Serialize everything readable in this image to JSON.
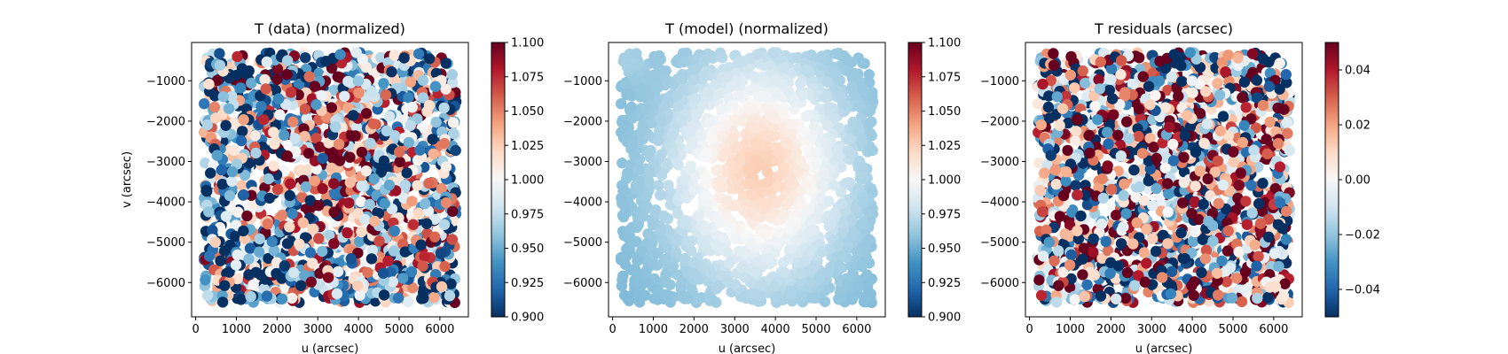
{
  "chart_data": [
    {
      "type": "scatter",
      "title": "T (data) (normalized)",
      "xlabel": "u (arcsec)",
      "ylabel": "v (arcsec)",
      "xlim": [
        -100,
        6700
      ],
      "ylim": [
        -6850,
        -50
      ],
      "xticks": [
        0,
        1000,
        2000,
        3000,
        4000,
        5000,
        6000
      ],
      "xtick_labels": [
        "0",
        "1000",
        "2000",
        "3000",
        "4000",
        "5000",
        "6000"
      ],
      "yticks": [
        -6000,
        -5000,
        -4000,
        -3000,
        -2000,
        -1000
      ],
      "ytick_labels": [
        "−6000",
        "−5000",
        "−4000",
        "−3000",
        "−2000",
        "−1000"
      ],
      "colorbar": {
        "cmap": "RdBu_r",
        "vmin": 0.9,
        "vmax": 1.1,
        "ticks": [
          0.9,
          0.925,
          0.95,
          0.975,
          1.0,
          1.025,
          1.05,
          1.075,
          1.1
        ],
        "tick_labels": [
          "0.900",
          "0.925",
          "0.950",
          "0.975",
          "1.000",
          "1.025",
          "1.050",
          "1.075",
          "1.100"
        ]
      },
      "pattern": "data",
      "n_points": 1800,
      "u_range": [
        200,
        6400
      ],
      "v_range": [
        -6500,
        -300
      ]
    },
    {
      "type": "scatter",
      "title": "T (model) (normalized)",
      "xlabel": "u (arcsec)",
      "ylabel": "",
      "xlim": [
        -100,
        6700
      ],
      "ylim": [
        -6850,
        -50
      ],
      "xticks": [
        0,
        1000,
        2000,
        3000,
        4000,
        5000,
        6000
      ],
      "xtick_labels": [
        "0",
        "1000",
        "2000",
        "3000",
        "4000",
        "5000",
        "6000"
      ],
      "yticks": [
        -6000,
        -5000,
        -4000,
        -3000,
        -2000,
        -1000
      ],
      "ytick_labels": [
        "−6000",
        "−5000",
        "−4000",
        "−3000",
        "−2000",
        "−1000"
      ],
      "colorbar": {
        "cmap": "RdBu_r",
        "vmin": 0.9,
        "vmax": 1.1,
        "ticks": [
          0.9,
          0.925,
          0.95,
          0.975,
          1.0,
          1.025,
          1.05,
          1.075,
          1.1
        ],
        "tick_labels": [
          "0.900",
          "0.925",
          "0.950",
          "0.975",
          "1.000",
          "1.025",
          "1.050",
          "1.075",
          "1.100"
        ]
      },
      "pattern": "model",
      "n_points": 1800,
      "u_range": [
        200,
        6400
      ],
      "v_range": [
        -6500,
        -300
      ]
    },
    {
      "type": "scatter",
      "title": "T residuals (arcsec)",
      "xlabel": "u (arcsec)",
      "ylabel": "",
      "xlim": [
        -100,
        6700
      ],
      "ylim": [
        -6850,
        -50
      ],
      "xticks": [
        0,
        1000,
        2000,
        3000,
        4000,
        5000,
        6000
      ],
      "xtick_labels": [
        "0",
        "1000",
        "2000",
        "3000",
        "4000",
        "5000",
        "6000"
      ],
      "yticks": [
        -6000,
        -5000,
        -4000,
        -3000,
        -2000,
        -1000
      ],
      "ytick_labels": [
        "−6000",
        "−5000",
        "−4000",
        "−3000",
        "−2000",
        "−1000"
      ],
      "colorbar": {
        "cmap": "RdBu_r",
        "vmin": -0.05,
        "vmax": 0.05,
        "ticks": [
          -0.04,
          -0.02,
          0.0,
          0.02,
          0.04
        ],
        "tick_labels": [
          "−0.04",
          "−0.02",
          "0.00",
          "0.02",
          "0.04"
        ]
      },
      "pattern": "residual",
      "n_points": 1800,
      "u_range": [
        200,
        6400
      ],
      "v_range": [
        -6500,
        -300
      ]
    }
  ]
}
